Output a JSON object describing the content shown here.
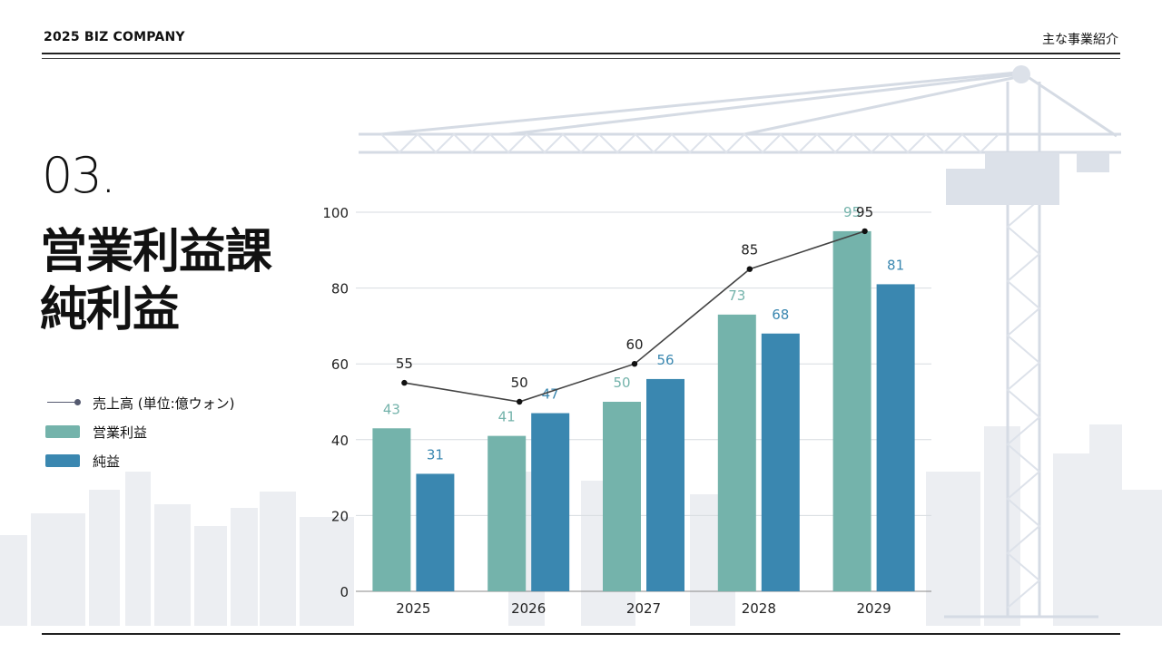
{
  "header": {
    "company": "2025 BIZ COMPANY",
    "section": "主な事業紹介"
  },
  "slide": {
    "number": "03.",
    "title_line1": "営業利益課",
    "title_line2": "純利益"
  },
  "colors": {
    "line": "#3c3c3c",
    "operating": "#74b3ab",
    "net": "#3a87b0",
    "background_art": "#dde2ea",
    "grid": "#d7dbe0"
  },
  "legend": [
    {
      "label": "売上高 (単位:億ウォン)",
      "type": "line",
      "color": "#555a70"
    },
    {
      "label": "営業利益",
      "type": "bar",
      "color": "#74b3ab"
    },
    {
      "label": "純益",
      "type": "bar",
      "color": "#3a87b0"
    }
  ],
  "chart_data": {
    "type": "bar",
    "title": "",
    "categories": [
      "2025",
      "2026",
      "2027",
      "2028",
      "2029"
    ],
    "series": [
      {
        "name": "営業利益",
        "type": "bar",
        "values": [
          43,
          41,
          50,
          73,
          95
        ]
      },
      {
        "name": "純益",
        "type": "bar",
        "values": [
          31,
          47,
          56,
          68,
          81
        ]
      },
      {
        "name": "売上高 (単位:億ウォン)",
        "type": "line",
        "values": [
          55,
          50,
          60,
          85,
          95
        ]
      }
    ],
    "yticks": [
      "0",
      "20",
      "40",
      "60",
      "80",
      "100"
    ],
    "ylim": [
      0,
      100
    ],
    "grid": true,
    "xlabel": "",
    "ylabel": ""
  }
}
